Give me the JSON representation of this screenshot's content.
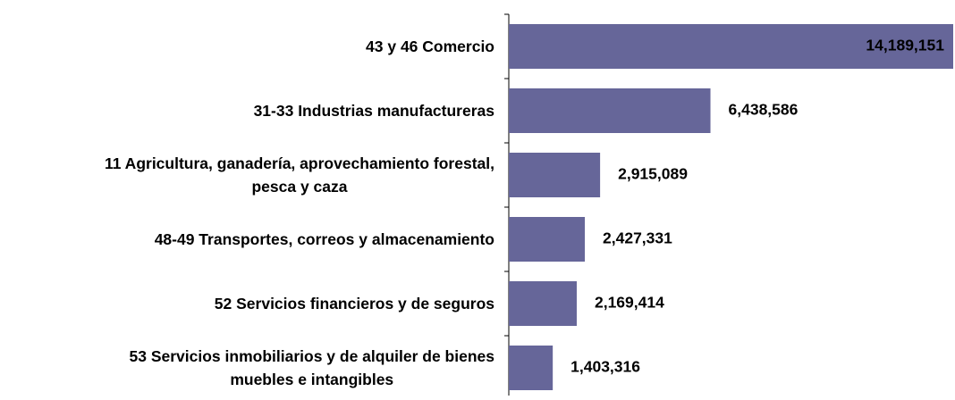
{
  "chart_data": {
    "type": "bar",
    "orientation": "horizontal",
    "categories": [
      "43 y 46 Comercio",
      "31-33 Industrias manufactureras",
      "11 Agricultura, ganadería, aprovechamiento forestal,\npesca y caza",
      "48-49 Transportes, correos y almacenamiento",
      "52 Servicios financieros y de seguros",
      "53 Servicios inmobiliarios y de alquiler de bienes\nmuebles e intangibles"
    ],
    "values": [
      14189151,
      6438586,
      2915089,
      2427331,
      2169414,
      1403316
    ],
    "value_labels": [
      "14,189,151",
      "6,438,586",
      "2,915,089",
      "2,427,331",
      "2,169,414",
      "1,403,316"
    ],
    "color": "#666699",
    "xlim": [
      0,
      14189151
    ]
  }
}
